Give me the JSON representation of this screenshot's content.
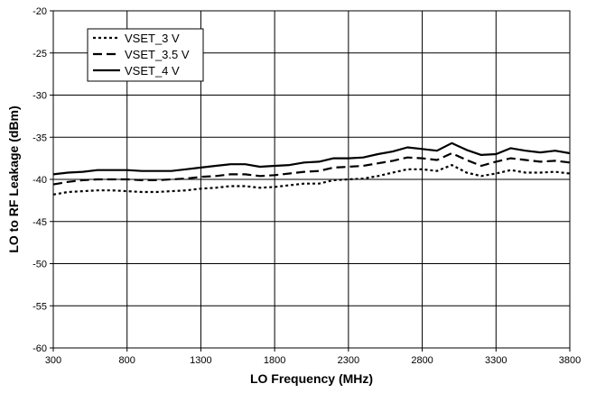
{
  "chart_data": {
    "type": "line",
    "xlabel": "LO Frequency (MHz)",
    "ylabel": "LO to RF Leakage (dBm)",
    "xlim": [
      300,
      3800
    ],
    "ylim": [
      -60,
      -20
    ],
    "x_ticks": [
      300,
      800,
      1300,
      1800,
      2300,
      2800,
      3300,
      3800
    ],
    "y_ticks": [
      -60,
      -55,
      -50,
      -45,
      -40,
      -35,
      -30,
      -25,
      -20
    ],
    "grid": true,
    "legend_position": "top-left",
    "series": [
      {
        "name": "VSET_3 V",
        "style": "dotted",
        "x": [
          300,
          400,
          500,
          600,
          700,
          800,
          900,
          1000,
          1100,
          1200,
          1300,
          1400,
          1500,
          1600,
          1700,
          1800,
          1900,
          2000,
          2100,
          2200,
          2300,
          2400,
          2500,
          2600,
          2700,
          2800,
          2900,
          3000,
          3100,
          3200,
          3300,
          3400,
          3500,
          3600,
          3700,
          3800
        ],
        "values": [
          -41.8,
          -41.5,
          -41.4,
          -41.3,
          -41.3,
          -41.4,
          -41.5,
          -41.5,
          -41.4,
          -41.3,
          -41.1,
          -41.0,
          -40.8,
          -40.8,
          -41.0,
          -40.9,
          -40.7,
          -40.5,
          -40.5,
          -40.1,
          -40.0,
          -39.9,
          -39.6,
          -39.2,
          -38.8,
          -38.8,
          -39.0,
          -38.3,
          -39.2,
          -39.6,
          -39.3,
          -38.9,
          -39.2,
          -39.2,
          -39.1,
          -39.3
        ]
      },
      {
        "name": "VSET_3.5 V",
        "style": "dashed",
        "x": [
          300,
          400,
          500,
          600,
          700,
          800,
          900,
          1000,
          1100,
          1200,
          1300,
          1400,
          1500,
          1600,
          1700,
          1800,
          1900,
          2000,
          2100,
          2200,
          2300,
          2400,
          2500,
          2600,
          2700,
          2800,
          2900,
          3000,
          3100,
          3200,
          3300,
          3400,
          3500,
          3600,
          3700,
          3800
        ],
        "values": [
          -40.6,
          -40.3,
          -40.1,
          -40.0,
          -40.0,
          -40.0,
          -40.1,
          -40.1,
          -40.0,
          -39.9,
          -39.7,
          -39.6,
          -39.4,
          -39.4,
          -39.6,
          -39.5,
          -39.3,
          -39.1,
          -39.0,
          -38.6,
          -38.5,
          -38.4,
          -38.1,
          -37.8,
          -37.4,
          -37.5,
          -37.7,
          -36.9,
          -37.7,
          -38.4,
          -37.9,
          -37.5,
          -37.7,
          -37.9,
          -37.8,
          -38.0
        ]
      },
      {
        "name": "VSET_4 V",
        "style": "solid",
        "x": [
          300,
          400,
          500,
          600,
          700,
          800,
          900,
          1000,
          1100,
          1200,
          1300,
          1400,
          1500,
          1600,
          1700,
          1800,
          1900,
          2000,
          2100,
          2200,
          2300,
          2400,
          2500,
          2600,
          2700,
          2800,
          2900,
          3000,
          3100,
          3200,
          3300,
          3400,
          3500,
          3600,
          3700,
          3800
        ],
        "values": [
          -39.4,
          -39.2,
          -39.1,
          -38.9,
          -38.9,
          -38.9,
          -39.0,
          -39.0,
          -39.0,
          -38.8,
          -38.6,
          -38.4,
          -38.2,
          -38.2,
          -38.5,
          -38.4,
          -38.3,
          -38.0,
          -37.9,
          -37.5,
          -37.5,
          -37.4,
          -37.0,
          -36.7,
          -36.2,
          -36.4,
          -36.6,
          -35.7,
          -36.5,
          -37.1,
          -37.0,
          -36.3,
          -36.6,
          -36.8,
          -36.6,
          -36.9
        ]
      }
    ]
  }
}
